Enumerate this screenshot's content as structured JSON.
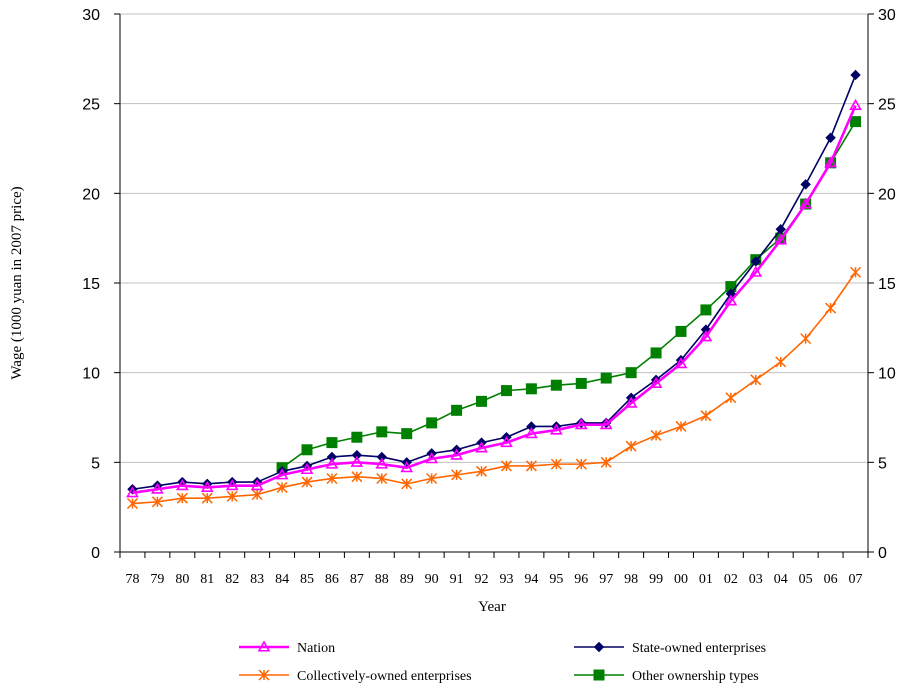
{
  "chart_data": {
    "type": "line",
    "title": "",
    "xlabel": "Year",
    "ylabel": "Wage (1000 yuan in 2007 price)",
    "ylim": [
      0,
      30
    ],
    "yticks": [
      "0",
      "5",
      "10",
      "15",
      "20",
      "25",
      "30"
    ],
    "secondary_yaxis": true,
    "grid": "horizontal",
    "legend_position": "bottom",
    "categories": [
      "78",
      "79",
      "80",
      "81",
      "82",
      "83",
      "84",
      "85",
      "86",
      "87",
      "88",
      "89",
      "90",
      "91",
      "92",
      "93",
      "94",
      "95",
      "96",
      "97",
      "98",
      "99",
      "00",
      "01",
      "02",
      "03",
      "04",
      "05",
      "06",
      "07"
    ],
    "series": [
      {
        "name": "Nation",
        "color": "#ff00ff",
        "marker": "triangle-open",
        "values": [
          3.3,
          3.5,
          3.7,
          3.6,
          3.7,
          3.7,
          4.3,
          4.6,
          4.9,
          5.0,
          4.9,
          4.7,
          5.2,
          5.4,
          5.8,
          6.1,
          6.6,
          6.8,
          7.1,
          7.1,
          8.3,
          9.4,
          10.5,
          12.0,
          14.0,
          15.6,
          17.4,
          19.4,
          21.7,
          24.9
        ]
      },
      {
        "name": "State-owned enterprises",
        "color": "#000066",
        "marker": "diamond",
        "values": [
          3.5,
          3.7,
          3.9,
          3.8,
          3.9,
          3.9,
          4.5,
          4.8,
          5.3,
          5.4,
          5.3,
          5.0,
          5.5,
          5.7,
          6.1,
          6.4,
          7.0,
          7.0,
          7.2,
          7.2,
          8.6,
          9.6,
          10.7,
          12.4,
          14.4,
          16.2,
          18.0,
          20.5,
          23.1,
          26.6
        ]
      },
      {
        "name": "Collectively-owned enterprises",
        "color": "#ff6600",
        "marker": "star",
        "values": [
          2.7,
          2.8,
          3.0,
          3.0,
          3.1,
          3.2,
          3.6,
          3.9,
          4.1,
          4.2,
          4.1,
          3.8,
          4.1,
          4.3,
          4.5,
          4.8,
          4.8,
          4.9,
          4.9,
          5.0,
          5.9,
          6.5,
          7.0,
          7.6,
          8.6,
          9.6,
          10.6,
          11.9,
          13.6,
          15.6
        ]
      },
      {
        "name": "Other ownership types",
        "color": "#008000",
        "marker": "square",
        "values": [
          null,
          null,
          null,
          null,
          null,
          null,
          4.7,
          5.7,
          6.1,
          6.4,
          6.7,
          6.6,
          7.2,
          7.9,
          8.4,
          9.0,
          9.1,
          9.3,
          9.4,
          9.7,
          10.0,
          11.1,
          12.3,
          13.5,
          14.8,
          16.3,
          17.5,
          19.4,
          21.7,
          24.0
        ]
      }
    ]
  }
}
